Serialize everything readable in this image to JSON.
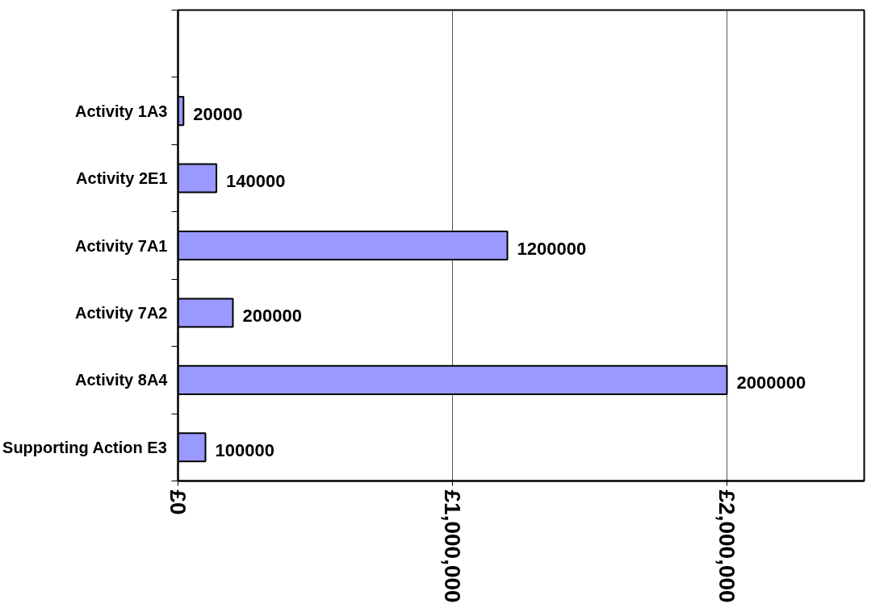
{
  "chart_data": {
    "type": "bar",
    "orientation": "horizontal",
    "categories": [
      null,
      "Activity 1A3",
      "Activity 2E1",
      "Activity 7A1",
      "Activity 7A2",
      "Activity 8A4",
      "Supporting Action E3"
    ],
    "values": [
      null,
      20000,
      140000,
      1200000,
      200000,
      2000000,
      100000
    ],
    "color": "#9999ff",
    "xlim": [
      0,
      2500000
    ],
    "xticks": [
      {
        "value": 0,
        "label": "£0"
      },
      {
        "value": 1000000,
        "label": "£1,000,000"
      },
      {
        "value": 2000000,
        "label": "£2,000,000"
      }
    ],
    "grid": "x",
    "data_labels": true
  }
}
